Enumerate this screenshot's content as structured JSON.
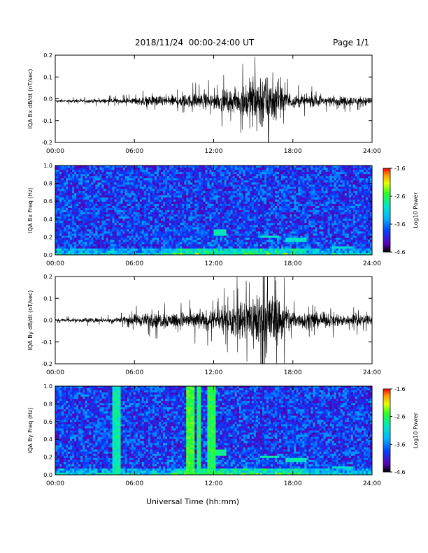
{
  "header": {
    "date_range": "2018/11/24  00:00-24:00 UT",
    "page": "Page 1/1"
  },
  "xlabel": "Universal Time (hh:mm)",
  "xticks": [
    "00:00",
    "06:00",
    "12:00",
    "18:00",
    "24:00"
  ],
  "chart_data": [
    {
      "type": "line",
      "ylabel": "IQA Bx dB/dt (nT/sec)",
      "ylim": [
        -0.2,
        0.2
      ],
      "yticks": [
        "0.2",
        "0.1",
        "0.0",
        "-0.1",
        "-0.2"
      ],
      "x_range_hours": [
        0,
        24
      ],
      "baseline": -0.01,
      "envelope": [
        {
          "hour": 0,
          "amp": 0.006
        },
        {
          "hour": 3,
          "amp": 0.012
        },
        {
          "hour": 5.5,
          "amp": 0.015
        },
        {
          "hour": 7,
          "amp": 0.03
        },
        {
          "hour": 10,
          "amp": 0.04
        },
        {
          "hour": 12,
          "amp": 0.05
        },
        {
          "hour": 14,
          "amp": 0.08
        },
        {
          "hour": 15.5,
          "amp": 0.2
        },
        {
          "hour": 16.5,
          "amp": 0.12
        },
        {
          "hour": 18,
          "amp": 0.04
        },
        {
          "hour": 21,
          "amp": 0.03
        },
        {
          "hour": 24,
          "amp": 0.025
        }
      ]
    },
    {
      "type": "heatmap",
      "ylabel": "IQA Bx Freq (Hz)",
      "ylim": [
        0,
        1.0
      ],
      "yticks": [
        "1.0",
        "0.8",
        "0.6",
        "0.4",
        "0.2",
        "0.0"
      ],
      "colorbar": {
        "label": "Log10 Power",
        "ticks": [
          "-1.6",
          "-2.6",
          "-3.6",
          "-4.6"
        ],
        "range": [
          -4.6,
          -1.6
        ]
      },
      "features": [
        {
          "hours": [
            12,
            13
          ],
          "freq": [
            0.22,
            0.28
          ],
          "level": -2.9
        },
        {
          "hours": [
            15.5,
            17
          ],
          "freq": [
            0.18,
            0.22
          ],
          "level": -3.0
        },
        {
          "hours": [
            17.5,
            19
          ],
          "freq": [
            0.14,
            0.18
          ],
          "level": -3.0
        },
        {
          "hours": [
            21,
            22.5
          ],
          "freq": [
            0.08,
            0.1
          ],
          "level": -3.1
        }
      ]
    },
    {
      "type": "line",
      "ylabel": "IQA By dB/dt (nT/sec)",
      "ylim": [
        -0.2,
        0.2
      ],
      "yticks": [
        "0.2",
        "0.1",
        "0.0",
        "-0.1",
        "-0.2"
      ],
      "x_range_hours": [
        0,
        24
      ],
      "baseline": 0.0,
      "envelope": [
        {
          "hour": 0,
          "amp": 0.006
        },
        {
          "hour": 2.5,
          "amp": 0.015
        },
        {
          "hour": 4,
          "amp": 0.012
        },
        {
          "hour": 6.5,
          "amp": 0.04
        },
        {
          "hour": 9,
          "amp": 0.05
        },
        {
          "hour": 12,
          "amp": 0.06
        },
        {
          "hour": 14.5,
          "amp": 0.12
        },
        {
          "hour": 15.5,
          "amp": 0.22
        },
        {
          "hour": 16.5,
          "amp": 0.18
        },
        {
          "hour": 18,
          "amp": 0.06
        },
        {
          "hour": 21,
          "amp": 0.04
        },
        {
          "hour": 24,
          "amp": 0.03
        }
      ]
    },
    {
      "type": "heatmap",
      "ylabel": "IQA By Freq (Hz)",
      "ylim": [
        0,
        1.0
      ],
      "yticks": [
        "1.0",
        "0.8",
        "0.6",
        "0.4",
        "0.2",
        "0.0"
      ],
      "colorbar": {
        "label": "Log10 Power",
        "ticks": [
          "-1.6",
          "-2.6",
          "-3.6",
          "-4.6"
        ],
        "range": [
          -4.6,
          -1.6
        ]
      },
      "bands": [
        {
          "hours": [
            4.4,
            4.9
          ],
          "level": -2.9
        },
        {
          "hours": [
            10,
            10.5
          ],
          "level": -2.5
        },
        {
          "hours": [
            10.7,
            11.1
          ],
          "level": -2.7
        },
        {
          "hours": [
            11.6,
            12.1
          ],
          "level": -2.6
        }
      ],
      "features": [
        {
          "hours": [
            12,
            13
          ],
          "freq": [
            0.22,
            0.28
          ],
          "level": -2.8
        },
        {
          "hours": [
            15.5,
            17
          ],
          "freq": [
            0.18,
            0.22
          ],
          "level": -2.9
        },
        {
          "hours": [
            17.5,
            19
          ],
          "freq": [
            0.14,
            0.18
          ],
          "level": -2.9
        },
        {
          "hours": [
            21,
            22.5
          ],
          "freq": [
            0.08,
            0.1
          ],
          "level": -3.0
        }
      ]
    }
  ]
}
